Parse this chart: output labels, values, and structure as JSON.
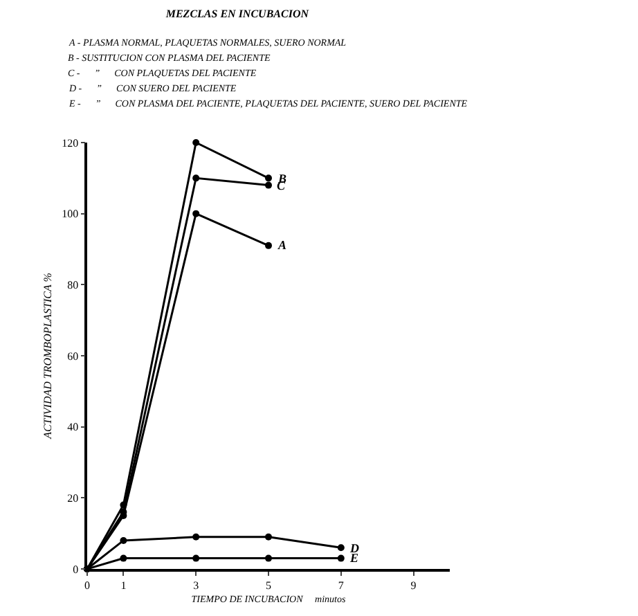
{
  "chart_data": {
    "type": "line",
    "title": "MEZCLAS EN INCUBACION",
    "annotations": [
      "A - PLASMA NORMAL, PLAQUETAS NORMALES, SUERO NORMAL",
      "B - SUSTITUCION CON PLASMA DEL PACIENTE",
      "C -      ”      CON PLAQUETAS DEL PACIENTE",
      "D -      ”      CON SUERO DEL PACIENTE",
      "E -      ”      CON PLASMA DEL PACIENTE, PLAQUETAS DEL PACIENTE, SUERO DEL PACIENTE"
    ],
    "xlabel": "TIEMPO DE INCUBACION     minutos",
    "ylabel": "ACTIVIDAD TROMBOPLASTICA %",
    "series": [
      {
        "name": "A",
        "color": "#000000",
        "x": [
          0,
          1,
          3,
          5
        ],
        "values": [
          0,
          15,
          100,
          91
        ]
      },
      {
        "name": "B",
        "color": "#000000",
        "x": [
          0,
          1,
          3,
          5
        ],
        "values": [
          0,
          18,
          120,
          110
        ]
      },
      {
        "name": "C",
        "color": "#000000",
        "x": [
          0,
          1,
          3,
          5
        ],
        "values": [
          0,
          16,
          110,
          108
        ]
      },
      {
        "name": "D",
        "color": "#000000",
        "x": [
          0,
          1,
          3,
          5,
          7
        ],
        "values": [
          0,
          8,
          9,
          9,
          6
        ]
      },
      {
        "name": "E",
        "color": "#000000",
        "x": [
          0,
          1,
          3,
          5,
          7
        ],
        "values": [
          0,
          3,
          3,
          3,
          3
        ]
      }
    ],
    "xlim": [
      0,
      10
    ],
    "xticks": [
      0,
      1,
      3,
      5,
      7,
      9
    ],
    "ylim": [
      0,
      120
    ],
    "yticks": [
      0,
      20,
      40,
      60,
      80,
      100,
      120
    ],
    "grid": false,
    "legend": false,
    "marker": "circle",
    "line_style": "solid"
  }
}
